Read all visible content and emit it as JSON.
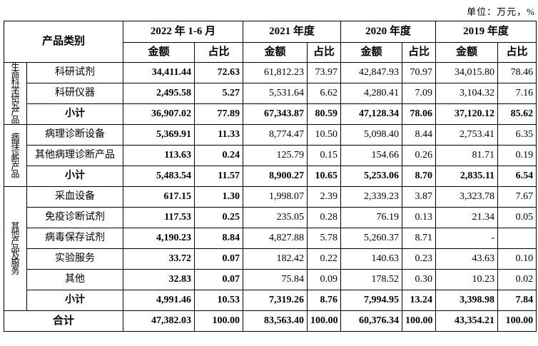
{
  "unit_note": "单位：万元，%",
  "table": {
    "category_header": "产品类别",
    "periods": [
      {
        "label": "2022 年 1-6 月",
        "sub": [
          "金额",
          "占比"
        ]
      },
      {
        "label": "2021 年度",
        "sub": [
          "金额",
          "占比"
        ]
      },
      {
        "label": "2020 年度",
        "sub": [
          "金额",
          "占比"
        ]
      },
      {
        "label": "2019 年度",
        "sub": [
          "金额",
          "占比"
        ]
      }
    ],
    "groups": [
      {
        "label": "生命科学研究产品",
        "rows": [
          {
            "item": "科研试剂",
            "subtotal": false,
            "values": [
              "34,411.44",
              "72.63",
              "61,812.23",
              "73.97",
              "42,847.93",
              "70.97",
              "34,015.80",
              "78.46"
            ]
          },
          {
            "item": "科研仪器",
            "subtotal": false,
            "values": [
              "2,495.58",
              "5.27",
              "5,531.64",
              "6.62",
              "4,280.41",
              "7.09",
              "3,104.32",
              "7.16"
            ]
          },
          {
            "item": "小计",
            "subtotal": true,
            "values": [
              "36,907.02",
              "77.89",
              "67,343.87",
              "80.59",
              "47,128.34",
              "78.06",
              "37,120.12",
              "85.62"
            ]
          }
        ]
      },
      {
        "label": "病理诊断产品",
        "rows": [
          {
            "item": "病理诊断设备",
            "subtotal": false,
            "values": [
              "5,369.91",
              "11.33",
              "8,774.47",
              "10.50",
              "5,098.40",
              "8.44",
              "2,753.41",
              "6.35"
            ]
          },
          {
            "item": "其他病理诊断产品",
            "subtotal": false,
            "values": [
              "113.63",
              "0.24",
              "125.79",
              "0.15",
              "154.66",
              "0.26",
              "81.71",
              "0.19"
            ]
          },
          {
            "item": "小计",
            "subtotal": true,
            "values": [
              "5,483.54",
              "11.57",
              "8,900.27",
              "10.65",
              "5,253.06",
              "8.70",
              "2,835.11",
              "6.54"
            ]
          }
        ]
      },
      {
        "label": "其他产品及服务",
        "rows": [
          {
            "item": "采血设备",
            "subtotal": false,
            "values": [
              "617.15",
              "1.30",
              "1,998.07",
              "2.39",
              "2,339.23",
              "3.87",
              "3,323.78",
              "7.67"
            ]
          },
          {
            "item": "免疫诊断试剂",
            "subtotal": false,
            "values": [
              "117.53",
              "0.25",
              "235.05",
              "0.28",
              "76.19",
              "0.13",
              "21.34",
              "0.05"
            ]
          },
          {
            "item": "病毒保存试剂",
            "subtotal": false,
            "values": [
              "4,190.23",
              "8.84",
              "4,827.88",
              "5.78",
              "5,260.37",
              "8.71",
              "-",
              ""
            ]
          },
          {
            "item": "实验服务",
            "subtotal": false,
            "values": [
              "33.72",
              "0.07",
              "182.42",
              "0.22",
              "140.63",
              "0.23",
              "43.63",
              "0.10"
            ]
          },
          {
            "item": "其他",
            "subtotal": false,
            "values": [
              "32.83",
              "0.07",
              "75.84",
              "0.09",
              "178.52",
              "0.30",
              "10.23",
              "0.02"
            ]
          },
          {
            "item": "小计",
            "subtotal": true,
            "values": [
              "4,991.46",
              "10.53",
              "7,319.26",
              "8.76",
              "7,994.95",
              "13.24",
              "3,398.98",
              "7.84"
            ]
          }
        ]
      }
    ],
    "total": {
      "label": "合计",
      "values": [
        "47,382.03",
        "100.00",
        "83,563.40",
        "100.00",
        "60,376.34",
        "100.00",
        "43,354.21",
        "100.00"
      ]
    }
  }
}
